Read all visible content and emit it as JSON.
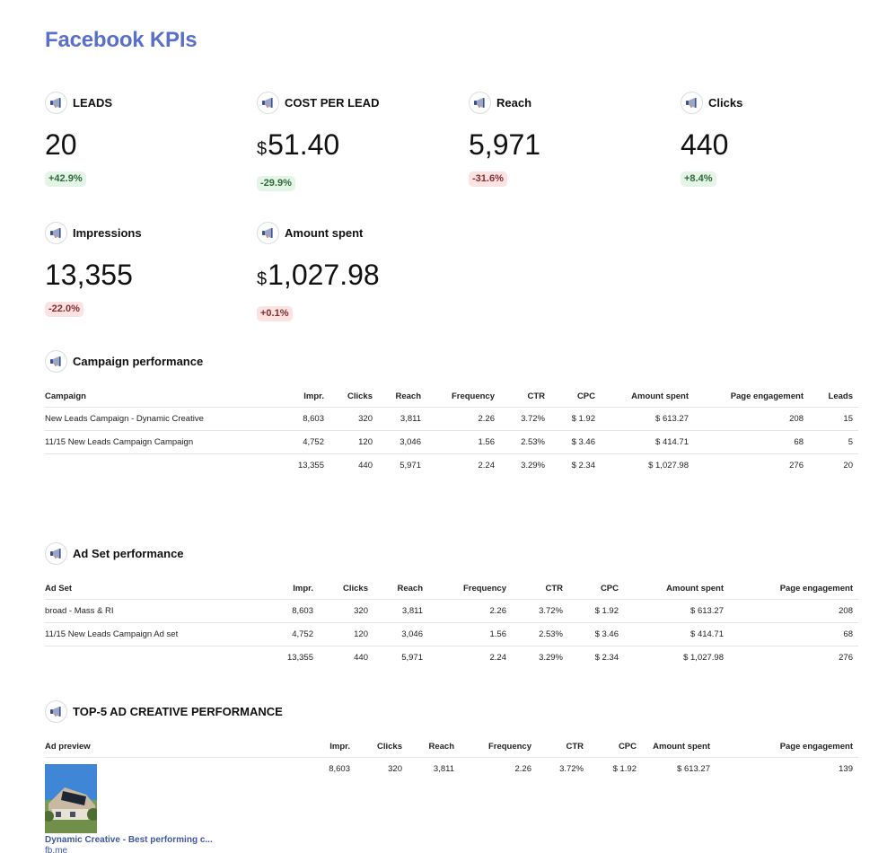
{
  "title": "Facebook KPIs",
  "kpis": [
    {
      "label": "LEADS",
      "currency": "",
      "value": "20",
      "change": "+42.9%",
      "trend": "up"
    },
    {
      "label": "COST PER LEAD",
      "currency": "$",
      "value": "51.40",
      "change": "-29.9%",
      "trend": "up"
    },
    {
      "label": "Reach",
      "currency": "",
      "value": "5,971",
      "change": "-31.6%",
      "trend": "down"
    },
    {
      "label": "Clicks",
      "currency": "",
      "value": "440",
      "change": "+8.4%",
      "trend": "up"
    },
    {
      "label": "Impressions",
      "currency": "",
      "value": "13,355",
      "change": "-22.0%",
      "trend": "down"
    },
    {
      "label": "Amount spent",
      "currency": "$",
      "value": "1,027.98",
      "change": "+0.1%",
      "trend": "down"
    }
  ],
  "campaign": {
    "title": "Campaign performance",
    "headers": [
      "Campaign",
      "Impr.",
      "Clicks",
      "Reach",
      "Frequency",
      "CTR",
      "CPC",
      "Amount spent",
      "Page engagement",
      "Leads"
    ],
    "rows": [
      [
        "New Leads Campaign - Dynamic Creative",
        "8,603",
        "320",
        "3,811",
        "2.26",
        "3.72%",
        "$ 1.92",
        "$ 613.27",
        "208",
        "15"
      ],
      [
        "11/15 New Leads Campaign Campaign",
        "4,752",
        "120",
        "3,046",
        "1.56",
        "2.53%",
        "$ 3.46",
        "$ 414.71",
        "68",
        "5"
      ]
    ],
    "total": [
      "",
      "13,355",
      "440",
      "5,971",
      "2.24",
      "3.29%",
      "$ 2.34",
      "$ 1,027.98",
      "276",
      "20"
    ]
  },
  "adset": {
    "title": "Ad Set performance",
    "headers": [
      "Ad Set",
      "Impr.",
      "Clicks",
      "Reach",
      "Frequency",
      "CTR",
      "CPC",
      "Amount spent",
      "Page engagement"
    ],
    "rows": [
      [
        "broad - Mass & RI",
        "8,603",
        "320",
        "3,811",
        "2.26",
        "3.72%",
        "$ 1.92",
        "$ 613.27",
        "208"
      ],
      [
        "11/15 New Leads Campaign Ad set",
        "4,752",
        "120",
        "3,046",
        "1.56",
        "2.53%",
        "$ 3.46",
        "$ 414.71",
        "68"
      ]
    ],
    "total": [
      "",
      "13,355",
      "440",
      "5,971",
      "2.24",
      "3.29%",
      "$ 2.34",
      "$ 1,027.98",
      "276"
    ]
  },
  "creative": {
    "title": "TOP-5 AD CREATIVE PERFORMANCE",
    "headers": [
      "Ad preview",
      "Impr.",
      "Clicks",
      "Reach",
      "Frequency",
      "CTR",
      "CPC",
      "Amount spent",
      "Page engagement"
    ],
    "rows": [
      {
        "name": "Dynamic Creative - Best performing c...",
        "link": "fb.me",
        "values": [
          "8,603",
          "320",
          "3,811",
          "2.26",
          "3.72%",
          "$ 1.92",
          "$ 613.27",
          "139"
        ]
      }
    ]
  },
  "icons": {
    "section_icon": "megaphone-icon"
  },
  "colors": {
    "title": "#5a6fc9",
    "positive_bg": "#e4f5e7",
    "negative_bg": "#fbe3e3",
    "link": "#3f56a0"
  }
}
